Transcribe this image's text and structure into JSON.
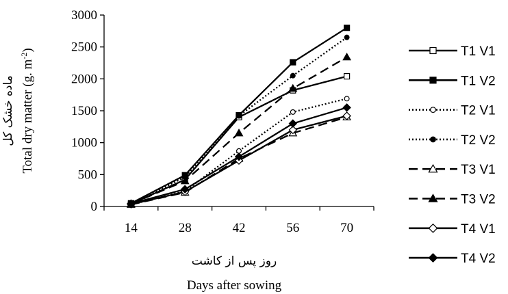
{
  "chart_data": {
    "type": "line",
    "x": [
      14,
      28,
      42,
      56,
      70
    ],
    "ylim": [
      0,
      3000
    ],
    "yticks": [
      0,
      500,
      1000,
      1500,
      2000,
      2500,
      3000
    ],
    "xlabel_fa": "روز پس از کاشت",
    "xlabel": "Days after sowing",
    "ylabel_fa": "ماده خشک کل",
    "ylabel": "Total  dry matter (g. m",
    "ylabel_sup": "-2",
    "ylabel_end": ")",
    "grid": false,
    "legend_position": "right",
    "series": [
      {
        "name": "T1 V1",
        "values": [
          40,
          420,
          1400,
          1820,
          2040
        ],
        "line": "solid",
        "marker": "square-open",
        "color": "#000000"
      },
      {
        "name": "T1 V2",
        "values": [
          50,
          490,
          1430,
          2260,
          2800
        ],
        "line": "solid",
        "marker": "square-filled",
        "color": "#000000"
      },
      {
        "name": "T2 V1",
        "values": [
          30,
          240,
          870,
          1480,
          1690
        ],
        "line": "dotted",
        "marker": "circle-open",
        "color": "#000000"
      },
      {
        "name": "T2 V2",
        "values": [
          45,
          460,
          1420,
          2050,
          2650
        ],
        "line": "dotted",
        "marker": "circle-filled",
        "color": "#000000"
      },
      {
        "name": "T3 V1",
        "values": [
          30,
          220,
          750,
          1150,
          1400
        ],
        "line": "dashed",
        "marker": "triangle-open",
        "color": "#000000"
      },
      {
        "name": "T3 V2",
        "values": [
          40,
          400,
          1150,
          1850,
          2340
        ],
        "line": "dashed",
        "marker": "triangle-filled",
        "color": "#000000"
      },
      {
        "name": "T4 V1",
        "values": [
          35,
          230,
          720,
          1200,
          1420
        ],
        "line": "solid",
        "marker": "diamond-open",
        "color": "#000000"
      },
      {
        "name": "T4 V2",
        "values": [
          45,
          270,
          780,
          1300,
          1550
        ],
        "line": "solid",
        "marker": "diamond-filled",
        "color": "#000000"
      }
    ]
  }
}
